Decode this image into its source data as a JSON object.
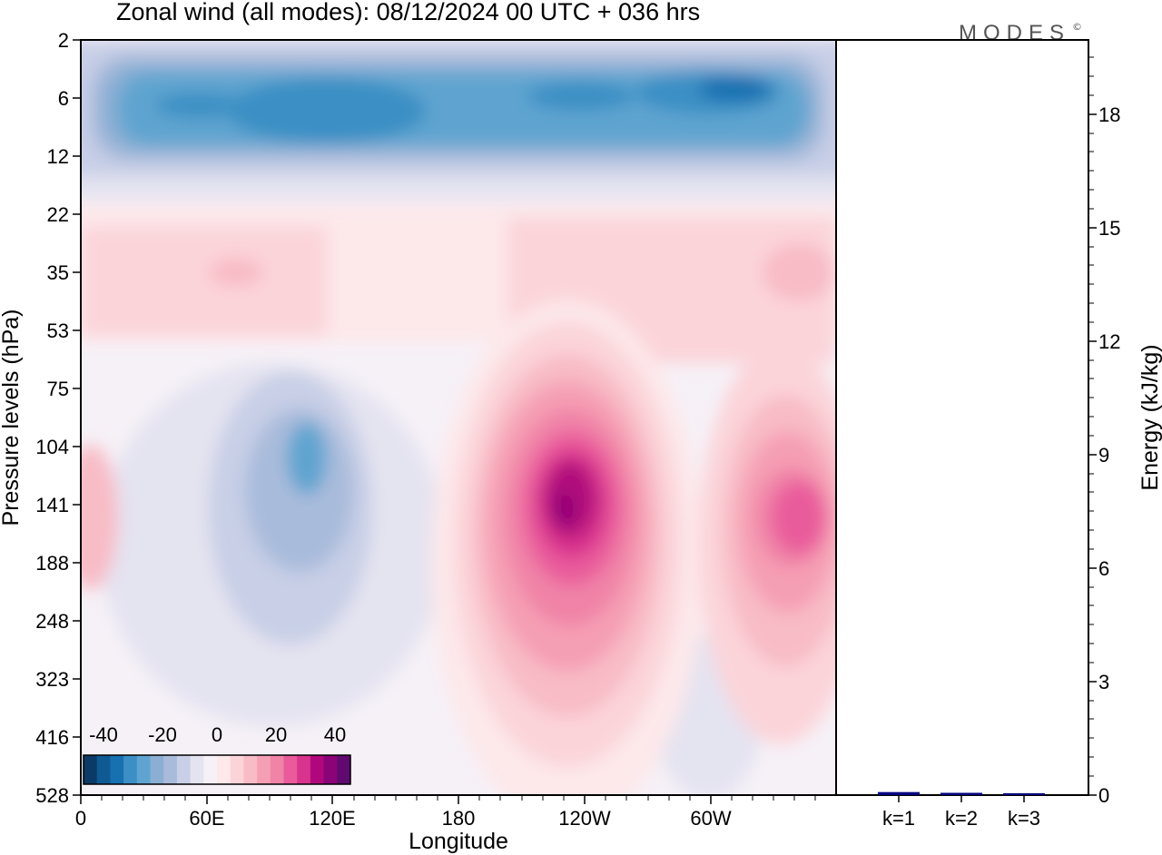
{
  "title": "Zonal wind (all modes):  08/12/2024  00 UTC  + 036 hrs",
  "logo": "MODES",
  "logo_mark": "©",
  "chart_data": [
    {
      "type": "heatmap",
      "title": "Zonal wind (all modes):  08/12/2024  00 UTC  + 036 hrs",
      "xlabel": "Longitude",
      "ylabel": "Pressure levels (hPa)",
      "x_ticks": [
        "0",
        "60E",
        "120E",
        "180",
        "120W",
        "60W"
      ],
      "y_ticks": [
        "2",
        "6",
        "12",
        "22",
        "35",
        "53",
        "75",
        "104",
        "141",
        "188",
        "248",
        "323",
        "416",
        "528"
      ],
      "colorbar": {
        "labels": [
          "-40",
          "-20",
          "0",
          "20",
          "40"
        ],
        "range": [
          -50,
          50
        ],
        "step": 5,
        "colors": [
          "#0b3a66",
          "#0f5a92",
          "#1770b0",
          "#3b8fc4",
          "#5fa4d0",
          "#8aafd3",
          "#a9bbdb",
          "#c8cfe6",
          "#e4e3f0",
          "#f6f1f7",
          "#fde8ea",
          "#fbd4d9",
          "#f8bcc6",
          "#f59fb4",
          "#f083a7",
          "#e95b9b",
          "#d8338d",
          "#b0087c",
          "#8b0477",
          "#600a70"
        ]
      },
      "features": [
        {
          "name": "easterly band",
          "pressure_hPa": [
            4,
            14
          ],
          "value": -30
        },
        {
          "name": "westerly maximum",
          "longitude": "120W",
          "pressure_hPa": 141,
          "value": 45
        },
        {
          "name": "westerly maximum",
          "longitude": "20W",
          "pressure_hPa": 141,
          "value": 30
        },
        {
          "name": "easterly minimum",
          "longitude": "110E",
          "pressure_hPa": 125,
          "value": -20
        }
      ]
    },
    {
      "type": "bar",
      "ylabel": "Energy (kJ/kg)",
      "categories": [
        "k=1",
        "k=2",
        "k=3"
      ],
      "values": [
        0.08,
        0.06,
        0.03
      ],
      "ylim": [
        0,
        20
      ],
      "y_ticks": [
        "0",
        "3",
        "6",
        "9",
        "12",
        "15",
        "18"
      ],
      "bar_color": "#000080"
    }
  ]
}
